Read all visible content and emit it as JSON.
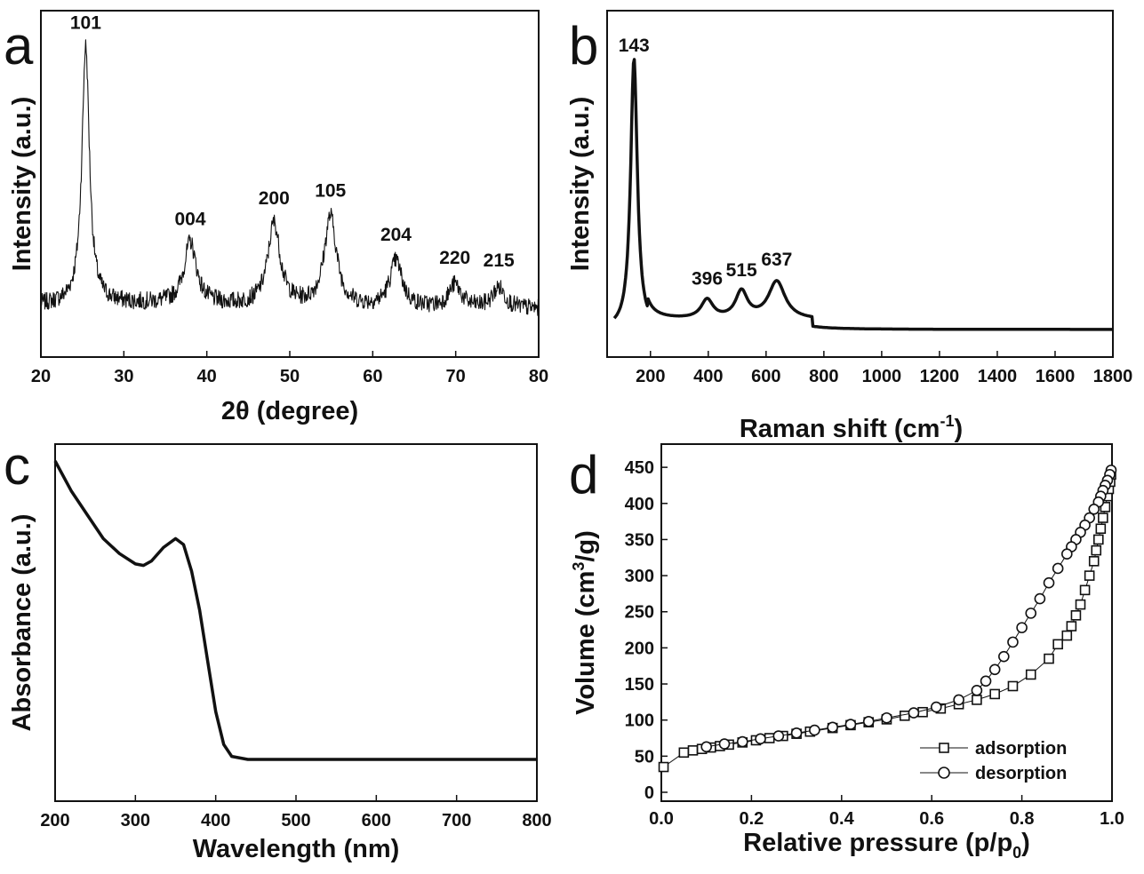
{
  "chart_data": [
    {
      "panel": "a",
      "type": "line",
      "xlabel": "2θ (degree)",
      "ylabel": "Intensity (a.u.)",
      "xlim": [
        20,
        80
      ],
      "xticks": [
        20,
        30,
        40,
        50,
        60,
        70,
        80
      ],
      "y_ticks_shown": false,
      "peaks": [
        {
          "x": 25.4,
          "label": "101",
          "height": 1.0
        },
        {
          "x": 38.0,
          "label": "004",
          "height": 0.24
        },
        {
          "x": 48.1,
          "label": "200",
          "height": 0.32
        },
        {
          "x": 54.9,
          "label": "105",
          "height": 0.35
        },
        {
          "x": 62.8,
          "label": "204",
          "height": 0.18
        },
        {
          "x": 69.9,
          "label": "220",
          "height": 0.09
        },
        {
          "x": 75.2,
          "label": "215",
          "height": 0.08
        }
      ]
    },
    {
      "panel": "b",
      "type": "line",
      "xlabel": "Raman shift (cm",
      "xlabel_sup": "-1",
      "xlabel_tail": ")",
      "ylabel": "Intensity (a.u.)",
      "xlim": [
        50,
        1800
      ],
      "xticks": [
        200,
        400,
        600,
        800,
        1000,
        1200,
        1400,
        1600,
        1800
      ],
      "y_ticks_shown": false,
      "peaks": [
        {
          "x": 143,
          "label": "143",
          "height": 1.0
        },
        {
          "x": 396,
          "label": "396",
          "height": 0.07
        },
        {
          "x": 515,
          "label": "515",
          "height": 0.1
        },
        {
          "x": 637,
          "label": "637",
          "height": 0.14
        }
      ]
    },
    {
      "panel": "c",
      "type": "line",
      "xlabel": "Wavelength (nm)",
      "ylabel": "Absorbance (a.u.)",
      "xlim": [
        200,
        800
      ],
      "xticks": [
        200,
        300,
        400,
        500,
        600,
        700,
        800
      ],
      "y_ticks_shown": false,
      "x": [
        200,
        220,
        240,
        260,
        280,
        300,
        310,
        320,
        335,
        350,
        360,
        370,
        380,
        390,
        400,
        410,
        420,
        440,
        500,
        600,
        700,
        800
      ],
      "y": [
        1.0,
        0.9,
        0.82,
        0.74,
        0.69,
        0.655,
        0.65,
        0.665,
        0.71,
        0.74,
        0.72,
        0.63,
        0.5,
        0.33,
        0.16,
        0.05,
        0.01,
        0.0,
        0.0,
        0.0,
        0.0,
        0.0
      ]
    },
    {
      "panel": "d",
      "type": "scatter",
      "xlabel": "Relative pressure (p/p",
      "xlabel_sub": "0",
      "xlabel_tail": ")",
      "ylabel": "Volume (cm",
      "ylabel_sup": "3",
      "ylabel_tail": "/g)",
      "xlim": [
        0.0,
        1.0
      ],
      "ylim": [
        0,
        460
      ],
      "xticks": [
        "0.0",
        "0.2",
        "0.4",
        "0.6",
        "0.8",
        "1.0"
      ],
      "yticks": [
        "0",
        "50",
        "100",
        "150",
        "200",
        "250",
        "300",
        "350",
        "400",
        "450"
      ],
      "legend_position": "bottom-right",
      "series": [
        {
          "name": "adsorption",
          "marker": "square",
          "x": [
            0.005,
            0.05,
            0.07,
            0.09,
            0.11,
            0.13,
            0.15,
            0.18,
            0.21,
            0.24,
            0.27,
            0.3,
            0.33,
            0.38,
            0.42,
            0.46,
            0.5,
            0.54,
            0.58,
            0.62,
            0.66,
            0.7,
            0.74,
            0.78,
            0.82,
            0.86,
            0.88,
            0.9,
            0.91,
            0.92,
            0.93,
            0.94,
            0.95,
            0.96,
            0.965,
            0.97,
            0.975,
            0.98,
            0.985,
            0.99,
            0.993,
            0.996,
            0.998
          ],
          "y": [
            35,
            55,
            58,
            60,
            62,
            64,
            66,
            69,
            72,
            75,
            78,
            81,
            84,
            89,
            93,
            97,
            101,
            106,
            111,
            116,
            122,
            128,
            136,
            147,
            163,
            185,
            205,
            217,
            230,
            245,
            260,
            280,
            300,
            320,
            335,
            350,
            365,
            380,
            395,
            410,
            420,
            430,
            440
          ]
        },
        {
          "name": "desorption",
          "marker": "circle",
          "x": [
            0.998,
            0.995,
            0.99,
            0.985,
            0.98,
            0.975,
            0.97,
            0.96,
            0.95,
            0.94,
            0.93,
            0.92,
            0.91,
            0.9,
            0.88,
            0.86,
            0.84,
            0.82,
            0.8,
            0.78,
            0.76,
            0.74,
            0.72,
            0.7,
            0.66,
            0.61,
            0.56,
            0.5,
            0.46,
            0.42,
            0.38,
            0.34,
            0.3,
            0.26,
            0.22,
            0.18,
            0.14,
            0.1
          ],
          "y": [
            446,
            440,
            432,
            425,
            418,
            410,
            402,
            392,
            380,
            370,
            360,
            350,
            340,
            330,
            310,
            290,
            268,
            248,
            228,
            208,
            188,
            170,
            154,
            141,
            128,
            118,
            110,
            103,
            98,
            94,
            90,
            86,
            82,
            78,
            74,
            70,
            67,
            63
          ]
        }
      ]
    }
  ]
}
